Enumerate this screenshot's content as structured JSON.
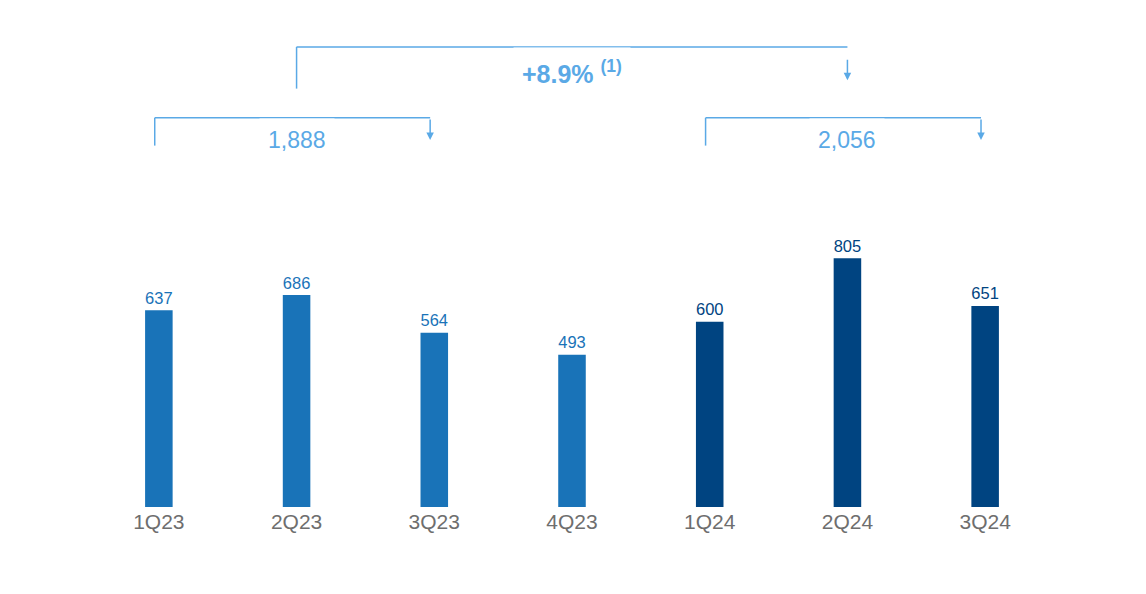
{
  "chart_data": {
    "type": "bar",
    "categories": [
      "1Q23",
      "2Q23",
      "3Q23",
      "4Q23",
      "1Q24",
      "2Q24",
      "3Q24"
    ],
    "values": [
      637,
      686,
      564,
      493,
      600,
      805,
      651
    ],
    "colors": [
      "#1973b8",
      "#1973b8",
      "#1973b8",
      "#1973b8",
      "#004481",
      "#004481",
      "#004481"
    ],
    "ylim": [
      0,
      900
    ],
    "data_labels": true,
    "tick_labels": "x",
    "grid": false,
    "annotations": [
      {
        "text": "1,888",
        "from": "1Q23",
        "to": "3Q23"
      },
      {
        "text": "2,056",
        "from": "1Q24",
        "to": "3Q24"
      }
    ],
    "comparison": {
      "text": "+8.9%",
      "footnote_mark": "(1)",
      "from": "1,888",
      "to": "2,056"
    }
  }
}
